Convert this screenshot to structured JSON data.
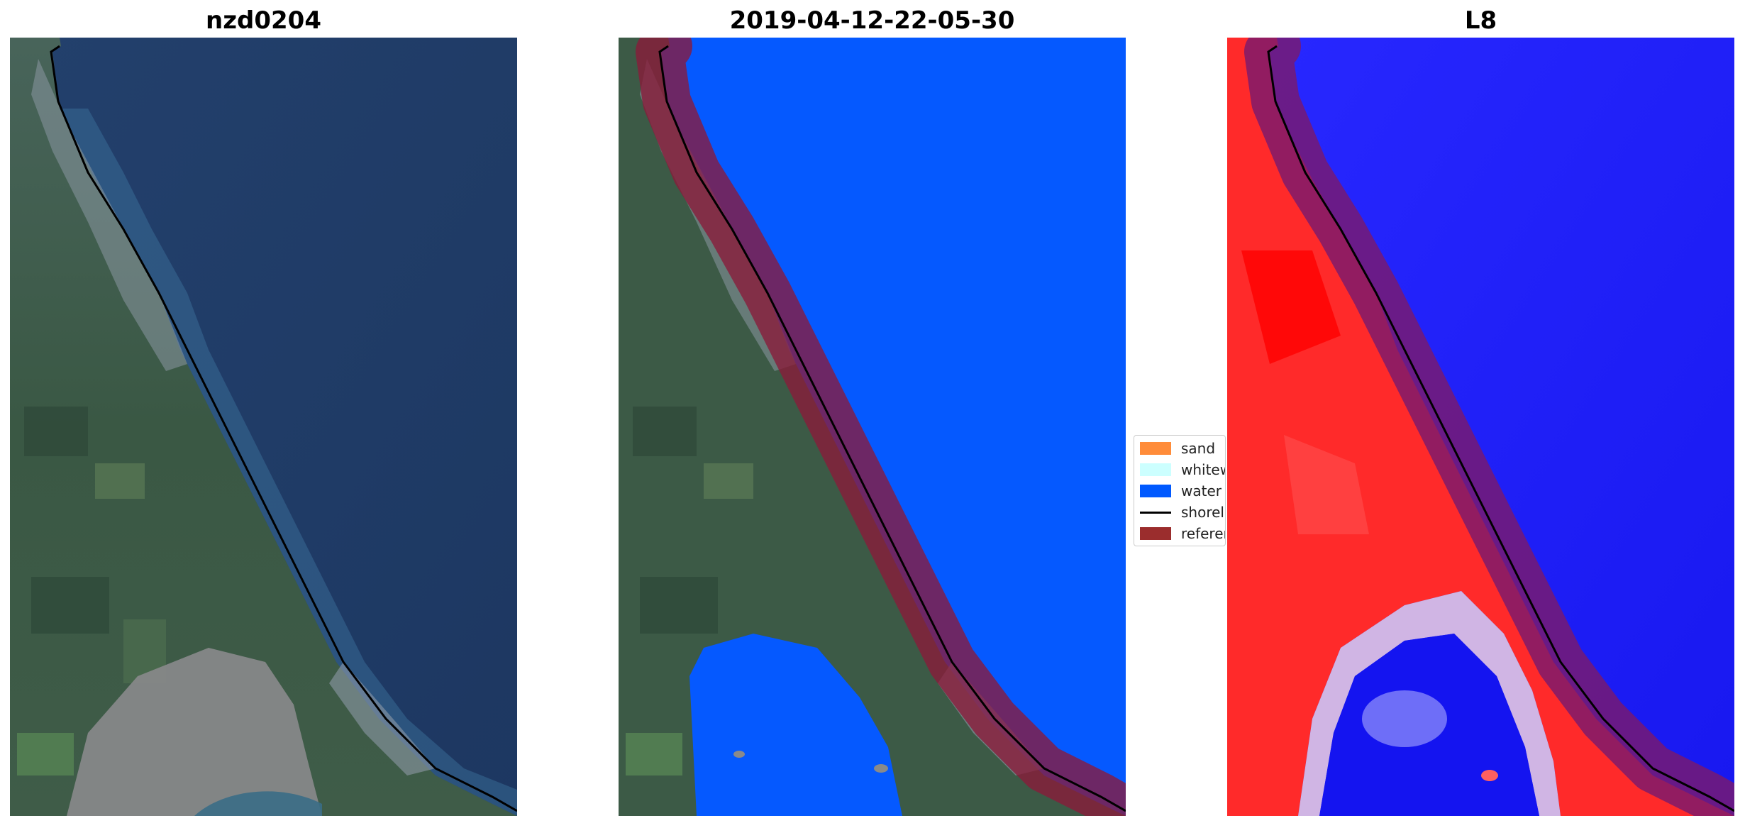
{
  "panels": [
    {
      "title": "nzd0204",
      "kind": "rgb"
    },
    {
      "title": "2019-04-12-22-05-30",
      "kind": "classified"
    },
    {
      "title": "L8",
      "kind": "index"
    }
  ],
  "legend": {
    "items": [
      {
        "label": "sand",
        "type": "patch",
        "color": "#ff8c3a"
      },
      {
        "label": "whitewater",
        "type": "patch",
        "color": "#ccffff"
      },
      {
        "label": "water",
        "type": "patch",
        "color": "#0059ff"
      },
      {
        "label": "shoreline",
        "type": "line",
        "color": "#000000"
      },
      {
        "label": "reference",
        "type": "patch",
        "color": "#9b2d2d"
      }
    ]
  },
  "colors": {
    "ocean": "#1f3f6e",
    "land": "#3c5a46",
    "water_class": "#0559ff",
    "buffer": "#8b1a3a",
    "index_high": "#ff2020",
    "index_low": "#1818ff"
  }
}
